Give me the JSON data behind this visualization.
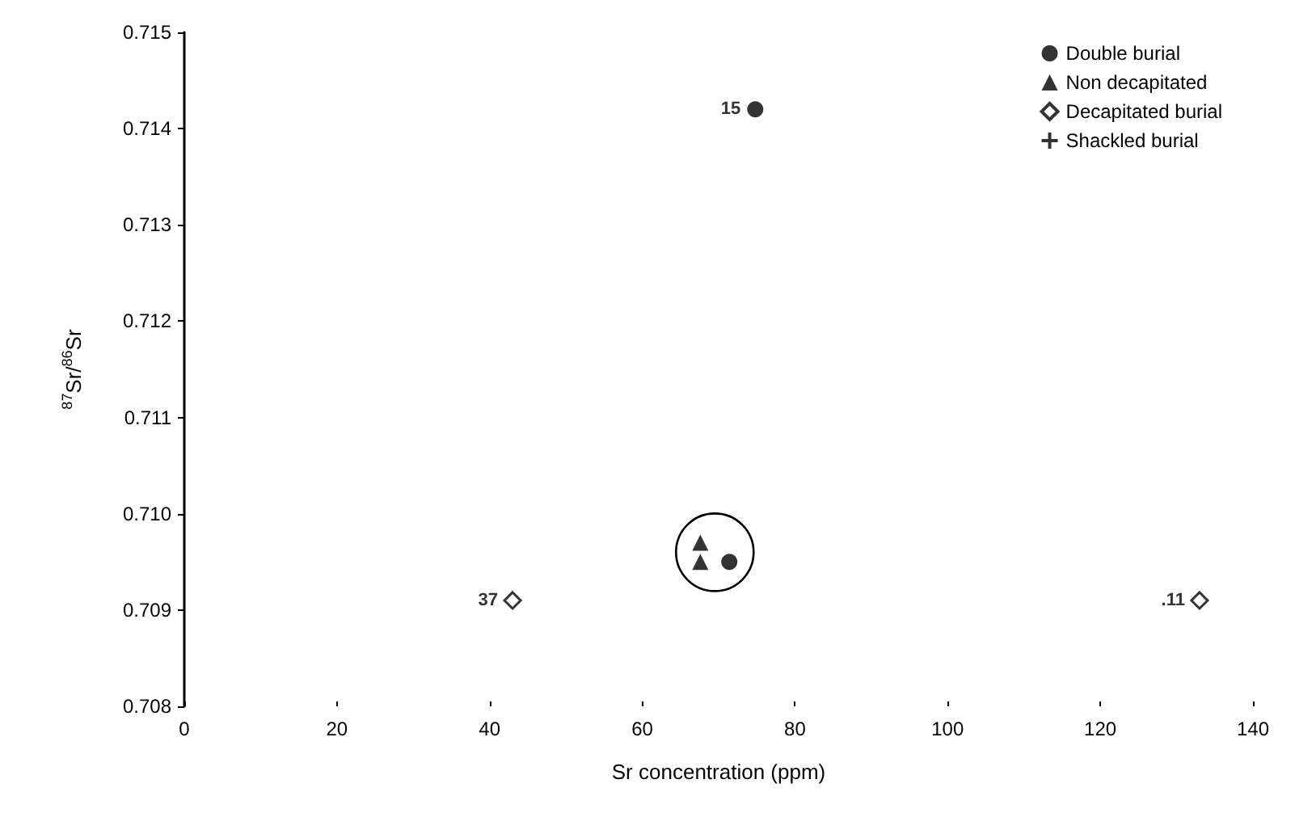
{
  "chart_data": {
    "type": "scatter",
    "xlabel": "Sr concentration (ppm)",
    "ylabel": "$^{87}$Sr/$^{86}$Sr",
    "xlim": [
      0,
      140
    ],
    "xticks": [
      0,
      20,
      40,
      60,
      80,
      100,
      120,
      140
    ],
    "ylim": [
      0.708,
      0.715
    ],
    "yticks": [
      {
        "value": 0.708,
        "label": "0.708"
      },
      {
        "value": 0.709,
        "label": "0.709"
      },
      {
        "value": 0.71,
        "label": "0.710"
      },
      {
        "value": 0.711,
        "label": "0.711"
      },
      {
        "value": 0.712,
        "label": "0.712"
      },
      {
        "value": 0.713,
        "label": "0.713"
      },
      {
        "value": 0.714,
        "label": "0.714"
      },
      {
        "value": 0.715,
        "label": "0.715"
      }
    ],
    "annotations": [
      {
        "text": "15",
        "x": 74.8,
        "y": 0.7142
      },
      {
        "text": "37",
        "x": 43,
        "y": 0.7091
      },
      {
        "text": ".11",
        "x": 133,
        "y": 0.7091
      }
    ],
    "grid": false,
    "legend": "top right",
    "series": [
      {
        "name": "Double burial",
        "color": "#000000",
        "marker": "circle",
        "x": [
          74.8,
          71.4
        ],
        "values": [
          0.7142,
          0.7095
        ]
      },
      {
        "name": "Non decapitated",
        "color": "#000000",
        "marker": "triangle",
        "x": [
          67.6,
          67.6
        ],
        "values": [
          0.7097,
          0.7095
        ]
      },
      {
        "name": "Decapitated burial",
        "color": "#000000",
        "marker": "diamond",
        "x": [
          43,
          133
        ],
        "values": [
          0.7091,
          0.7091
        ]
      },
      {
        "name": "Shackled burial",
        "color": "#000000",
        "marker": "cross"
      }
    ]
  }
}
